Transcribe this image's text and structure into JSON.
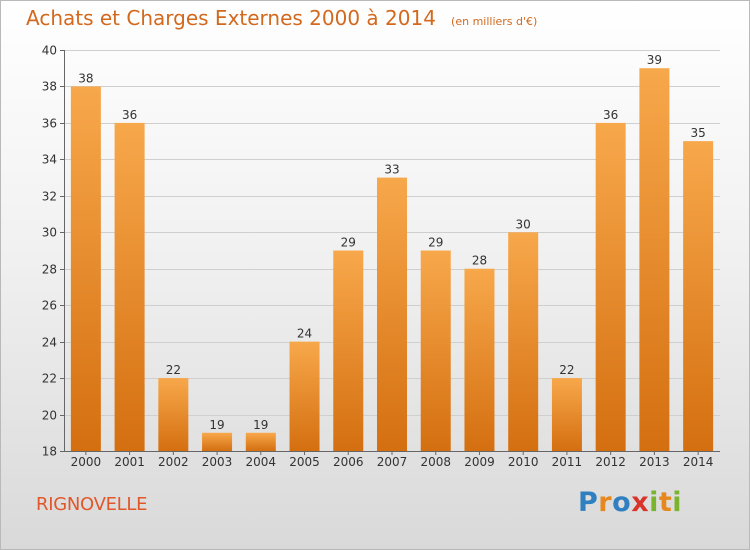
{
  "header": {
    "title": "Achats et Charges Externes 2000 à 2014",
    "subtitle": "(en milliers d'€)"
  },
  "footer": {
    "place": "RIGNOVELLE",
    "logo": "Proxiti"
  },
  "colors": {
    "bar_light": "#f7a84b",
    "bar_dark": "#d46f10",
    "text": "#333333",
    "title": "#d2691e"
  },
  "chart_data": {
    "type": "bar",
    "title": "Achats et Charges Externes 2000 à 2014",
    "subtitle": "(en milliers d'€)",
    "categories": [
      "2000",
      "2001",
      "2002",
      "2003",
      "2004",
      "2005",
      "2006",
      "2007",
      "2008",
      "2009",
      "2010",
      "2011",
      "2012",
      "2013",
      "2014"
    ],
    "values": [
      38,
      36,
      22,
      19,
      19,
      24,
      29,
      33,
      29,
      28,
      30,
      22,
      36,
      39,
      35
    ],
    "ylim": [
      18,
      40
    ],
    "yticks": [
      18,
      20,
      22,
      24,
      26,
      28,
      30,
      32,
      34,
      36,
      38,
      40
    ],
    "grid": true,
    "data_labels": true,
    "legend": "none"
  }
}
